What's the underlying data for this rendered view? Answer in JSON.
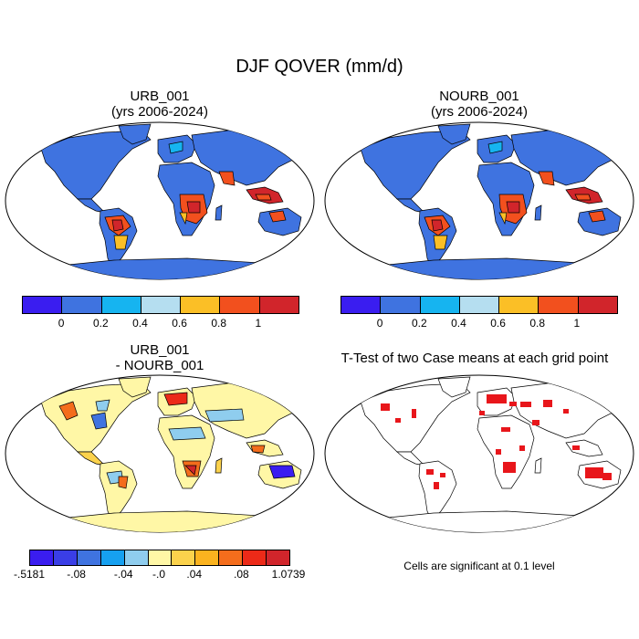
{
  "figure": {
    "title": "DJF QOVER (mm/d)",
    "panels": [
      {
        "title_line1": "URB_001",
        "title_line2": "(yrs 2006-2024)"
      },
      {
        "title_line1": "NOURB_001",
        "title_line2": "(yrs 2006-2024)"
      },
      {
        "title_line1": "URB_001",
        "title_line2": "- NOURB_001"
      },
      {
        "title_line1": "T-Test of two Case means at each grid point",
        "title_line2": ""
      }
    ],
    "colorbar_abs": {
      "colors": [
        "#3a1df0",
        "#3f73e0",
        "#16b4f0",
        "#b5def0",
        "#fbbf26",
        "#f2501e",
        "#d1252b"
      ],
      "ticks": [
        "0",
        "0.2",
        "0.4",
        "0.6",
        "0.8",
        "1"
      ]
    },
    "colorbar_diff": {
      "colors": [
        "#3a1df0",
        "#3a3ee6",
        "#3f73e0",
        "#16a0f0",
        "#8fcdee",
        "#fff7a6",
        "#fbd24c",
        "#fbb31f",
        "#f46d1c",
        "#ec2a18",
        "#d1252b"
      ],
      "ticks": [
        "-.5181",
        "-.08",
        "-.04",
        "-.0",
        ".04",
        ".08",
        "1.0739"
      ]
    },
    "ttest_note": "Cells are significant at 0.1 level",
    "colors": {
      "ocean": "#ffffff",
      "land_low": "#3f73e0",
      "land_diff_base": "#fff7a6",
      "significant": "#e8161b"
    }
  }
}
